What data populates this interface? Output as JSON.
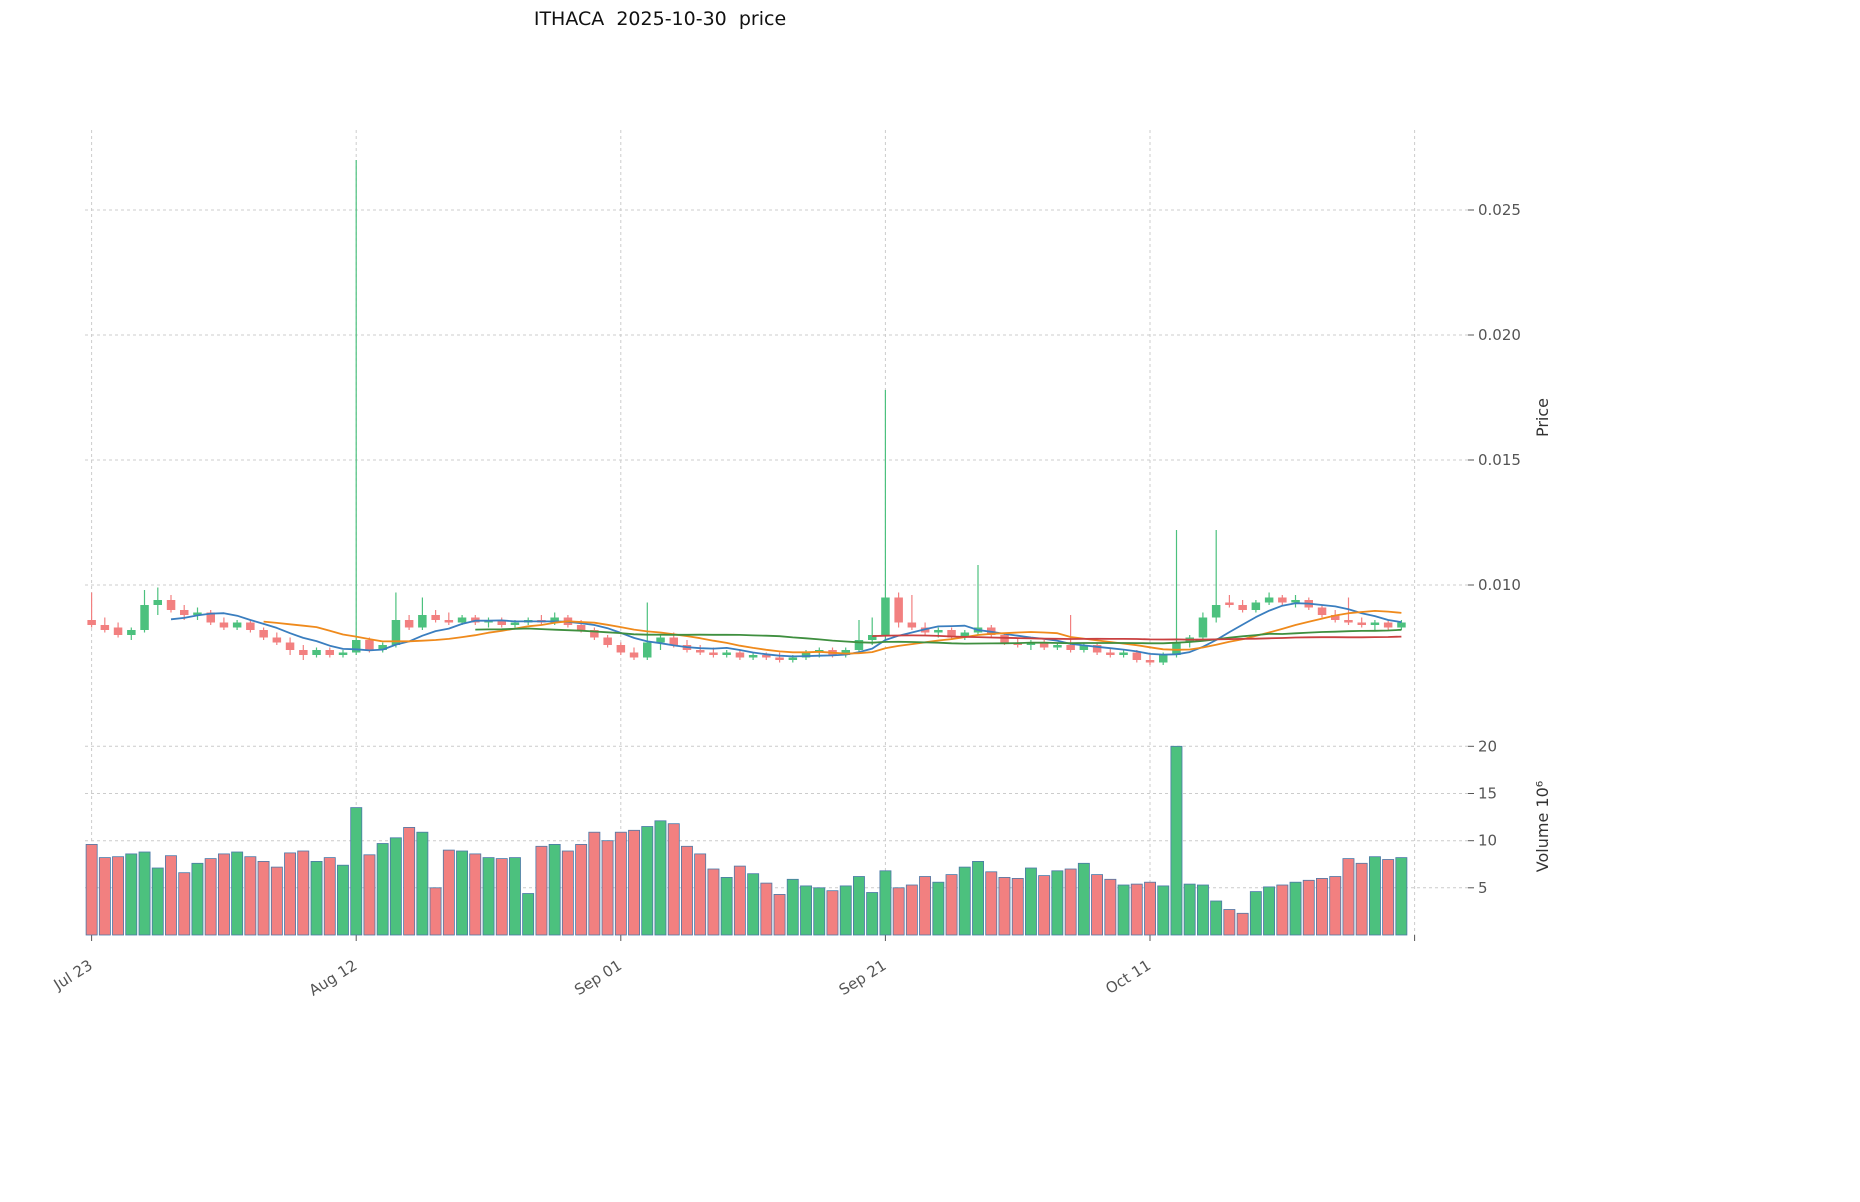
{
  "title": "ITHACA  2025-10-30  price",
  "chart_data": {
    "type": "candlestick+volume",
    "title": "ITHACA  2025-10-30  price",
    "symbol": "ITHACA",
    "as_of": "2025-10-30",
    "start_date": "2025-07-23",
    "end_date": "2025-10-30",
    "frequency": "daily",
    "grid": "dashed",
    "price_axis": {
      "label": "Price",
      "range": [
        0.0052,
        0.0282
      ],
      "ticks": [
        {
          "value": 0.01,
          "label": "0.010"
        },
        {
          "value": 0.015,
          "label": "0.015"
        },
        {
          "value": 0.02,
          "label": "0.020"
        },
        {
          "value": 0.025,
          "label": "0.025"
        }
      ]
    },
    "volume_axis": {
      "label": "Volume  10⁶",
      "range": [
        0,
        23
      ],
      "ticks": [
        {
          "value": 5,
          "label": "5"
        },
        {
          "value": 10,
          "label": "10"
        },
        {
          "value": 15,
          "label": "15"
        },
        {
          "value": 20,
          "label": "20"
        }
      ]
    },
    "x_axis": {
      "ticks": [
        {
          "index": 0,
          "label": "Jul 23"
        },
        {
          "index": 20,
          "label": "Aug 12"
        },
        {
          "index": 40,
          "label": "Sep 01"
        },
        {
          "index": 60,
          "label": "Sep 21"
        },
        {
          "index": 80,
          "label": "Oct 11"
        }
      ],
      "gridline_indices": [
        0,
        20,
        40,
        60,
        80,
        100
      ]
    },
    "moving_averages": [
      {
        "name": "ma-7",
        "window": 7,
        "color": "#3A7EBF"
      },
      {
        "name": "ma-14",
        "window": 14,
        "color": "#EF8A1C"
      },
      {
        "name": "ma-30",
        "window": 30,
        "color": "#3F8F3F"
      },
      {
        "name": "ma-60",
        "window": 60,
        "color": "#C94040"
      }
    ],
    "colors": {
      "up": "#4CC17E",
      "down": "#F28080",
      "volume_edge": "#4B79A8",
      "grid": "#CCCCCC",
      "tick_text": "#555555",
      "axis_label": "#333333"
    },
    "columns": [
      "open",
      "high",
      "low",
      "close",
      "volume_millions"
    ],
    "rows": [
      [
        0.0086,
        0.0097,
        0.0083,
        0.0084,
        9.6
      ],
      [
        0.0084,
        0.0087,
        0.0081,
        0.0082,
        8.2
      ],
      [
        0.0083,
        0.0085,
        0.0079,
        0.008,
        8.3
      ],
      [
        0.008,
        0.0083,
        0.0078,
        0.0082,
        8.6
      ],
      [
        0.0082,
        0.0098,
        0.0081,
        0.0092,
        8.8
      ],
      [
        0.0092,
        0.0099,
        0.0088,
        0.0094,
        7.1
      ],
      [
        0.0094,
        0.0096,
        0.0089,
        0.009,
        8.4
      ],
      [
        0.009,
        0.0092,
        0.0086,
        0.0088,
        6.6
      ],
      [
        0.0088,
        0.0091,
        0.0086,
        0.0089,
        7.6
      ],
      [
        0.0089,
        0.009,
        0.0084,
        0.0085,
        8.1
      ],
      [
        0.0085,
        0.0087,
        0.0082,
        0.0083,
        8.6
      ],
      [
        0.0083,
        0.0086,
        0.0082,
        0.0085,
        8.8
      ],
      [
        0.0085,
        0.0086,
        0.0081,
        0.0082,
        8.3
      ],
      [
        0.0082,
        0.0083,
        0.0078,
        0.0079,
        7.8
      ],
      [
        0.0079,
        0.0081,
        0.0076,
        0.0077,
        7.2
      ],
      [
        0.0077,
        0.0079,
        0.0072,
        0.0074,
        8.7
      ],
      [
        0.0074,
        0.0076,
        0.007,
        0.0072,
        8.9
      ],
      [
        0.0072,
        0.0075,
        0.0071,
        0.0074,
        7.8
      ],
      [
        0.0074,
        0.0075,
        0.0071,
        0.0072,
        8.2
      ],
      [
        0.0072,
        0.0074,
        0.0071,
        0.0073,
        7.4
      ],
      [
        0.0073,
        0.027,
        0.0072,
        0.0078,
        13.5
      ],
      [
        0.0078,
        0.0079,
        0.0073,
        0.0074,
        8.5
      ],
      [
        0.0074,
        0.0077,
        0.0073,
        0.0076,
        9.7
      ],
      [
        0.0076,
        0.0097,
        0.0075,
        0.0086,
        10.3
      ],
      [
        0.0086,
        0.0088,
        0.0082,
        0.0083,
        11.4
      ],
      [
        0.0083,
        0.0095,
        0.0082,
        0.0088,
        10.9
      ],
      [
        0.0088,
        0.009,
        0.0085,
        0.0086,
        5.0
      ],
      [
        0.0086,
        0.0089,
        0.0084,
        0.0085,
        9.0
      ],
      [
        0.0085,
        0.0088,
        0.0084,
        0.0087,
        8.9
      ],
      [
        0.0087,
        0.0088,
        0.0084,
        0.0085,
        8.6
      ],
      [
        0.0085,
        0.0087,
        0.0083,
        0.0086,
        8.2
      ],
      [
        0.0086,
        0.0087,
        0.0083,
        0.0084,
        8.1
      ],
      [
        0.0084,
        0.0086,
        0.0083,
        0.0085,
        8.2
      ],
      [
        0.0085,
        0.0087,
        0.0084,
        0.0086,
        4.4
      ],
      [
        0.0086,
        0.0088,
        0.0084,
        0.0085,
        9.4
      ],
      [
        0.0085,
        0.0089,
        0.0084,
        0.0087,
        9.6
      ],
      [
        0.0087,
        0.0088,
        0.0083,
        0.0084,
        8.9
      ],
      [
        0.0084,
        0.0086,
        0.0081,
        0.0082,
        9.6
      ],
      [
        0.0082,
        0.0083,
        0.0078,
        0.0079,
        10.9
      ],
      [
        0.0079,
        0.008,
        0.0075,
        0.0076,
        10.0
      ],
      [
        0.0076,
        0.0077,
        0.0072,
        0.0073,
        10.9
      ],
      [
        0.0073,
        0.0075,
        0.007,
        0.0071,
        11.1
      ],
      [
        0.0071,
        0.0093,
        0.007,
        0.0077,
        11.5
      ],
      [
        0.0077,
        0.008,
        0.0074,
        0.0079,
        12.1
      ],
      [
        0.0079,
        0.0081,
        0.0075,
        0.0076,
        11.8
      ],
      [
        0.0076,
        0.0078,
        0.0073,
        0.0074,
        9.4
      ],
      [
        0.0074,
        0.0076,
        0.0072,
        0.0073,
        8.6
      ],
      [
        0.0073,
        0.0075,
        0.0071,
        0.0072,
        7.0
      ],
      [
        0.0072,
        0.0074,
        0.0071,
        0.0073,
        6.1
      ],
      [
        0.0073,
        0.0074,
        0.007,
        0.0071,
        7.3
      ],
      [
        0.0071,
        0.0073,
        0.007,
        0.0072,
        6.5
      ],
      [
        0.0072,
        0.0073,
        0.007,
        0.0071,
        5.5
      ],
      [
        0.0071,
        0.0073,
        0.0069,
        0.007,
        4.3
      ],
      [
        0.007,
        0.0072,
        0.0069,
        0.0071,
        5.9
      ],
      [
        0.0071,
        0.0074,
        0.007,
        0.0073,
        5.2
      ],
      [
        0.0073,
        0.0075,
        0.0071,
        0.0074,
        5.0
      ],
      [
        0.0074,
        0.0075,
        0.0071,
        0.0072,
        4.7
      ],
      [
        0.0072,
        0.0075,
        0.0071,
        0.0074,
        5.2
      ],
      [
        0.0074,
        0.0086,
        0.0073,
        0.0078,
        6.2
      ],
      [
        0.0078,
        0.0087,
        0.0076,
        0.008,
        4.5
      ],
      [
        0.008,
        0.0178,
        0.0078,
        0.0095,
        6.8
      ],
      [
        0.0095,
        0.0097,
        0.0083,
        0.0085,
        5.0
      ],
      [
        0.0085,
        0.0096,
        0.0082,
        0.0083,
        5.3
      ],
      [
        0.0083,
        0.0085,
        0.008,
        0.0081,
        6.2
      ],
      [
        0.0081,
        0.0083,
        0.0079,
        0.0082,
        5.6
      ],
      [
        0.0082,
        0.0083,
        0.0078,
        0.0079,
        6.4
      ],
      [
        0.0079,
        0.0082,
        0.0078,
        0.0081,
        7.2
      ],
      [
        0.0081,
        0.0108,
        0.008,
        0.0083,
        7.8
      ],
      [
        0.0083,
        0.0084,
        0.0079,
        0.008,
        6.7
      ],
      [
        0.008,
        0.0081,
        0.0076,
        0.0077,
        6.1
      ],
      [
        0.0077,
        0.0079,
        0.0075,
        0.0076,
        6.0
      ],
      [
        0.0076,
        0.0078,
        0.0074,
        0.0077,
        7.1
      ],
      [
        0.0077,
        0.0078,
        0.0074,
        0.0075,
        6.3
      ],
      [
        0.0075,
        0.0077,
        0.0074,
        0.0076,
        6.8
      ],
      [
        0.0076,
        0.0088,
        0.0073,
        0.0074,
        7.0
      ],
      [
        0.0074,
        0.0077,
        0.0073,
        0.0076,
        7.6
      ],
      [
        0.0076,
        0.0077,
        0.0072,
        0.0073,
        6.4
      ],
      [
        0.0073,
        0.0075,
        0.0071,
        0.0072,
        5.9
      ],
      [
        0.0072,
        0.0074,
        0.0071,
        0.0073,
        5.3
      ],
      [
        0.0073,
        0.0074,
        0.0069,
        0.007,
        5.4
      ],
      [
        0.007,
        0.0072,
        0.0068,
        0.0069,
        5.6
      ],
      [
        0.0069,
        0.0073,
        0.0068,
        0.0072,
        5.2
      ],
      [
        0.0072,
        0.0122,
        0.0071,
        0.0077,
        20.0
      ],
      [
        0.0077,
        0.008,
        0.0075,
        0.0079,
        5.4
      ],
      [
        0.0079,
        0.0089,
        0.0078,
        0.0087,
        5.3
      ],
      [
        0.0087,
        0.0122,
        0.0085,
        0.0092,
        3.6
      ],
      [
        0.0093,
        0.0096,
        0.0091,
        0.0092,
        2.7
      ],
      [
        0.0092,
        0.0094,
        0.0089,
        0.009,
        2.3
      ],
      [
        0.009,
        0.0094,
        0.0089,
        0.0093,
        4.6
      ],
      [
        0.0093,
        0.0097,
        0.0092,
        0.0095,
        5.1
      ],
      [
        0.0095,
        0.0096,
        0.0092,
        0.0093,
        5.3
      ],
      [
        0.0093,
        0.0096,
        0.0091,
        0.0094,
        5.6
      ],
      [
        0.0094,
        0.0095,
        0.009,
        0.0091,
        5.8
      ],
      [
        0.0091,
        0.0092,
        0.0087,
        0.0088,
        6.0
      ],
      [
        0.0088,
        0.009,
        0.0085,
        0.0086,
        6.2
      ],
      [
        0.0086,
        0.0095,
        0.0084,
        0.0085,
        8.1
      ],
      [
        0.0085,
        0.0087,
        0.0083,
        0.0084,
        7.6
      ],
      [
        0.0084,
        0.0086,
        0.0082,
        0.0085,
        8.3
      ],
      [
        0.0085,
        0.0086,
        0.0082,
        0.0083,
        8.0
      ],
      [
        0.0083,
        0.0086,
        0.0082,
        0.0085,
        8.2
      ]
    ]
  }
}
